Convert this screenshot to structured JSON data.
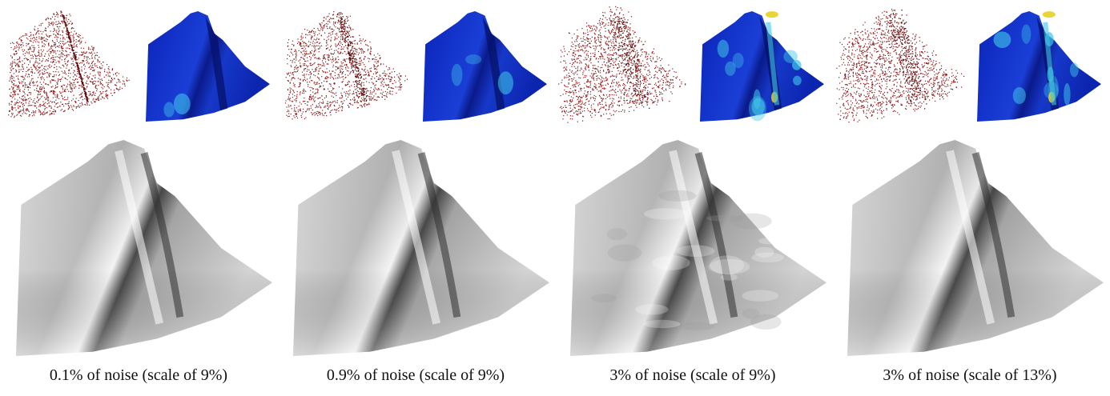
{
  "figure": {
    "columns": [
      {
        "caption": "0.1% of noise (scale of 9%)",
        "noise_percent": 0.1,
        "scale_percent": 9
      },
      {
        "caption": "0.9% of noise (scale of 9%)",
        "noise_percent": 0.9,
        "scale_percent": 9
      },
      {
        "caption": "3% of noise (scale of 9%)",
        "noise_percent": 3,
        "scale_percent": 9
      },
      {
        "caption": "3% of noise (scale of 13%)",
        "noise_percent": 3,
        "scale_percent": 13
      }
    ],
    "colors": {
      "point_cloud": "#8b1a1a",
      "error_map_low": "#0a1fb5",
      "error_map_mid": "#3fc6e8",
      "error_map_high": "#e8d020",
      "surface_light": "#f2f2f2",
      "surface_dark": "#3a3a3a"
    }
  }
}
